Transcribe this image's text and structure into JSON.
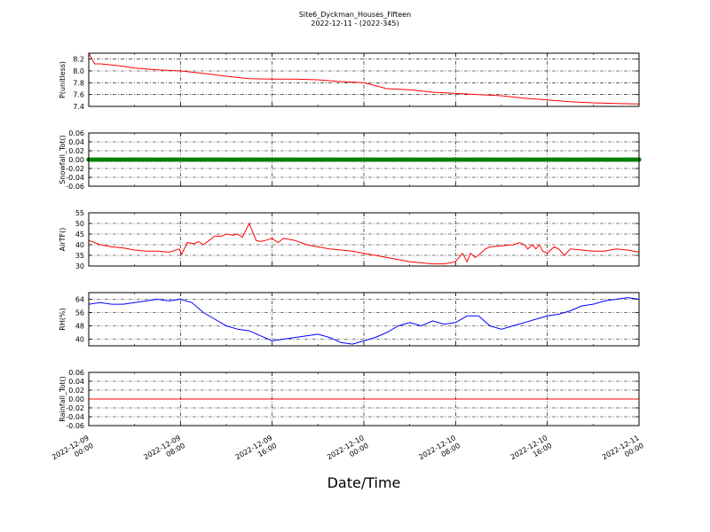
{
  "figure": {
    "title_line1": "Site6_Dyckman_Houses_Fifteen",
    "title_line2": "2022-12-11 - (2022-345)",
    "xlabel": "Date/Time",
    "x_ticks": [
      {
        "l1": "2022-12-09",
        "l2": "00:00"
      },
      {
        "l1": "2022-12-09",
        "l2": "08:00"
      },
      {
        "l1": "2022-12-09",
        "l2": "16:00"
      },
      {
        "l1": "2022-12-10",
        "l2": "00:00"
      },
      {
        "l1": "2022-12-10",
        "l2": "08:00"
      },
      {
        "l1": "2022-12-10",
        "l2": "16:00"
      },
      {
        "l1": "2022-12-11",
        "l2": "00:00"
      }
    ]
  },
  "chart_data": [
    {
      "type": "line",
      "ylabel": "P(unitless)",
      "ylim": [
        7.4,
        8.3
      ],
      "yticks": [
        "7.4",
        "7.6",
        "7.8",
        "8.0",
        "8.2"
      ],
      "grid": true,
      "color": "#ff0000",
      "x_hours": [
        0,
        0.5,
        1,
        2,
        3,
        4,
        6,
        8,
        10,
        12,
        14,
        16,
        18,
        20,
        22,
        24,
        26,
        28,
        30,
        32,
        34,
        36,
        38,
        40,
        42,
        44,
        46,
        48
      ],
      "values": [
        8.3,
        8.12,
        8.12,
        8.1,
        8.08,
        8.05,
        8.02,
        8.0,
        7.96,
        7.91,
        7.87,
        7.86,
        7.86,
        7.85,
        7.82,
        7.8,
        7.7,
        7.68,
        7.64,
        7.62,
        7.6,
        7.58,
        7.54,
        7.51,
        7.48,
        7.46,
        7.45,
        7.44
      ]
    },
    {
      "type": "line",
      "ylabel": "Snowfall_Tot()",
      "ylim": [
        -0.06,
        0.06
      ],
      "yticks": [
        "-0.06",
        "-0.04",
        "-0.02",
        "0.00",
        "0.02",
        "0.04",
        "0.06"
      ],
      "grid": true,
      "color": "#008000",
      "markers": true,
      "x_hours": [
        0,
        48
      ],
      "values": [
        0,
        0
      ]
    },
    {
      "type": "line",
      "ylabel": "AirTF()",
      "ylim": [
        30,
        55
      ],
      "yticks": [
        "30",
        "35",
        "40",
        "45",
        "50",
        "55"
      ],
      "grid": true,
      "color": "#ff0000",
      "x_hours": [
        0,
        1,
        2,
        3,
        4,
        5,
        6,
        7,
        7.9,
        8.1,
        8.6,
        9.2,
        9.6,
        10,
        10.5,
        11,
        11.6,
        12,
        12.6,
        13,
        13.4,
        14,
        14.6,
        15,
        15.4,
        16,
        16.5,
        17,
        18,
        19,
        20,
        21,
        22,
        23,
        24,
        25,
        26,
        27,
        28,
        29,
        30,
        31,
        32,
        32.6,
        33,
        33.3,
        33.7,
        34,
        34.6,
        35,
        36,
        37,
        37.6,
        38,
        38.3,
        38.7,
        39,
        39.3,
        39.6,
        40,
        40.6,
        41,
        41.5,
        42,
        43,
        44,
        45,
        46,
        47,
        48
      ],
      "values": [
        42,
        40,
        39,
        38.5,
        37.5,
        37,
        37,
        36.5,
        38,
        35.5,
        41,
        40.5,
        41.5,
        40,
        42,
        44,
        44,
        45,
        44.5,
        45,
        43.5,
        50,
        42,
        41.5,
        42,
        43,
        41,
        43,
        42,
        40,
        39,
        38,
        37.5,
        37,
        36,
        35,
        34,
        33,
        32,
        31.5,
        31,
        31,
        32,
        36,
        32,
        36,
        34,
        35,
        38,
        39,
        39.5,
        40,
        41,
        40,
        38,
        40,
        38,
        40,
        37,
        36,
        39,
        38,
        35,
        38,
        37.5,
        37,
        37,
        38,
        37.5,
        36.5
      ]
    },
    {
      "type": "line",
      "ylabel": "RH(%)",
      "ylim": [
        36,
        68
      ],
      "yticks": [
        "40",
        "48",
        "56",
        "64"
      ],
      "grid": true,
      "color": "#0000ff",
      "x_hours": [
        0,
        1,
        2,
        3,
        4,
        5,
        6,
        7,
        8,
        9,
        10,
        11,
        12,
        13,
        14,
        15,
        16,
        17,
        18,
        19,
        20,
        21,
        22,
        23,
        24,
        25,
        26,
        27,
        28,
        29,
        30,
        31,
        32,
        33,
        34,
        35,
        36,
        37,
        38,
        39,
        40,
        41,
        42,
        43,
        44,
        45,
        46,
        47,
        48
      ],
      "values": [
        61,
        62,
        61,
        61,
        62,
        63,
        64,
        63,
        64,
        62,
        56,
        52,
        48,
        46,
        45,
        42,
        39,
        40,
        41,
        42,
        43,
        41,
        38,
        37,
        39,
        41,
        44,
        48,
        50,
        48,
        51,
        49,
        50,
        54,
        54,
        48,
        46,
        48,
        50,
        52,
        54,
        55,
        57,
        60,
        61,
        63,
        64,
        65,
        64
      ]
    },
    {
      "type": "line",
      "ylabel": "Rainfall_Tot()",
      "ylim": [
        -0.06,
        0.06
      ],
      "yticks": [
        "-0.06",
        "-0.04",
        "-0.02",
        "0.00",
        "0.02",
        "0.04",
        "0.06"
      ],
      "grid": true,
      "color": "#ff0000",
      "x_hours": [
        0,
        48
      ],
      "values": [
        0,
        0
      ]
    }
  ]
}
